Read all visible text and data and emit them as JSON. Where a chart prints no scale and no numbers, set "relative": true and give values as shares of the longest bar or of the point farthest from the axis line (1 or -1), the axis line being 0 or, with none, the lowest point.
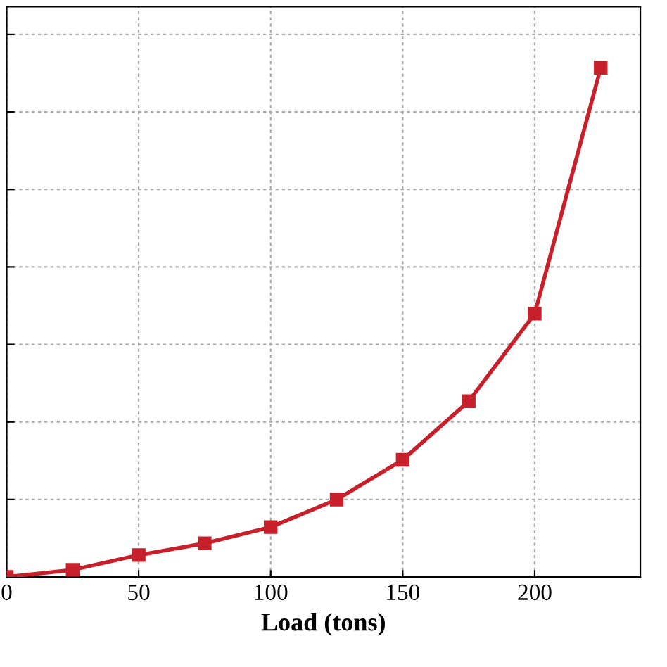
{
  "chart_data": {
    "type": "line",
    "xlabel": "Load (tons)",
    "relative": true,
    "x": [
      0,
      25,
      50,
      75,
      100,
      125,
      150,
      175,
      200,
      225
    ],
    "series": [
      {
        "color": "#c8202a",
        "values": [
          0,
          0.014,
          0.043,
          0.066,
          0.098,
          0.152,
          0.23,
          0.345,
          0.517,
          1
        ]
      }
    ],
    "xlim": [
      0,
      240
    ],
    "xticks": [
      0,
      50,
      100,
      150,
      200
    ],
    "grid": true,
    "marker": "square",
    "line_style": "solid",
    "legend": false
  }
}
